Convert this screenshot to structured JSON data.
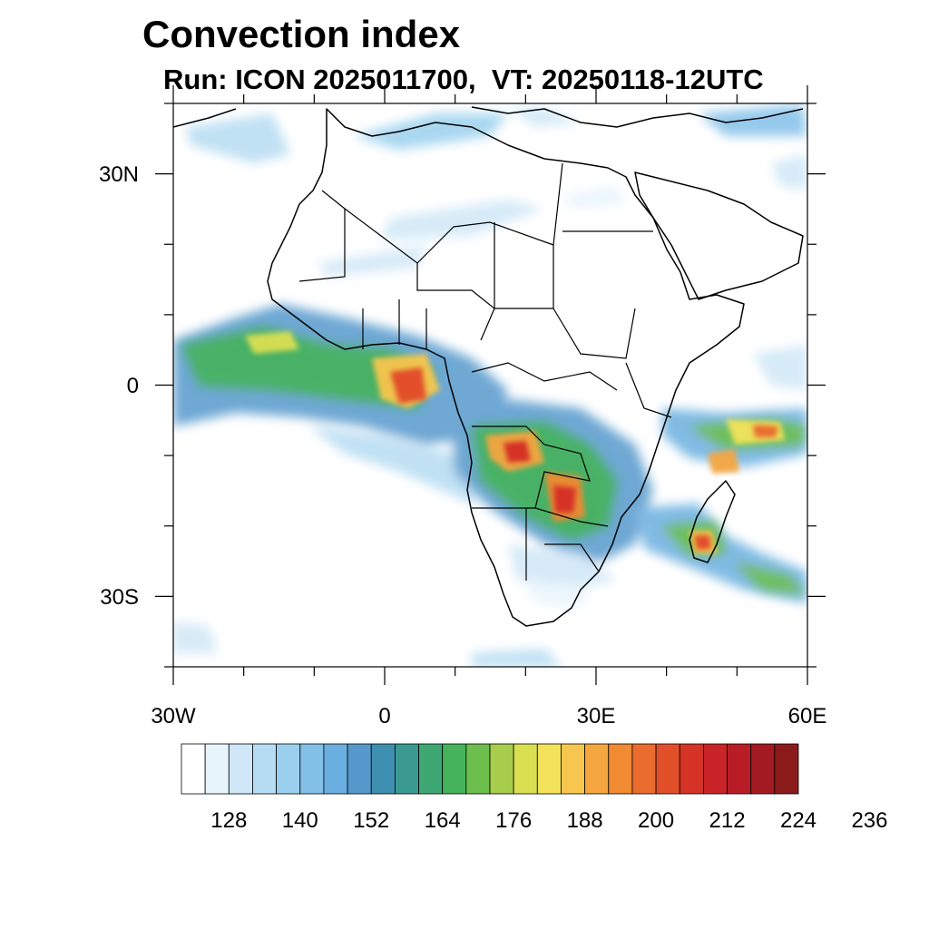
{
  "title": "Convection index",
  "subtitle": "Run: ICON 2025011700,  VT: 20250118-12UTC",
  "map": {
    "lon_range": [
      -30,
      60
    ],
    "lat_range": [
      -40,
      40
    ],
    "x_tick_labels": [
      "30W",
      "0",
      "30E",
      "60E"
    ],
    "y_tick_labels": [
      "30N",
      "0",
      "30S"
    ]
  },
  "colorbar": {
    "colors": [
      "#ffffff",
      "#e8f4fb",
      "#cfe7f6",
      "#b5dcf2",
      "#9ad0ee",
      "#82c0e8",
      "#6aafe0",
      "#5599cc",
      "#3f8fb0",
      "#3a9a92",
      "#3fa774",
      "#45b35a",
      "#6cbf4d",
      "#a8cc4c",
      "#dadf52",
      "#f2e35a",
      "#f7c64e",
      "#f5a63f",
      "#f08a33",
      "#ea6c2e",
      "#e2502a",
      "#d63327",
      "#c92428",
      "#b81d26",
      "#a41a22",
      "#8b1a1a"
    ],
    "tick_labels": [
      "128",
      "140",
      "152",
      "164",
      "176",
      "188",
      "200",
      "212",
      "224",
      "236"
    ]
  }
}
